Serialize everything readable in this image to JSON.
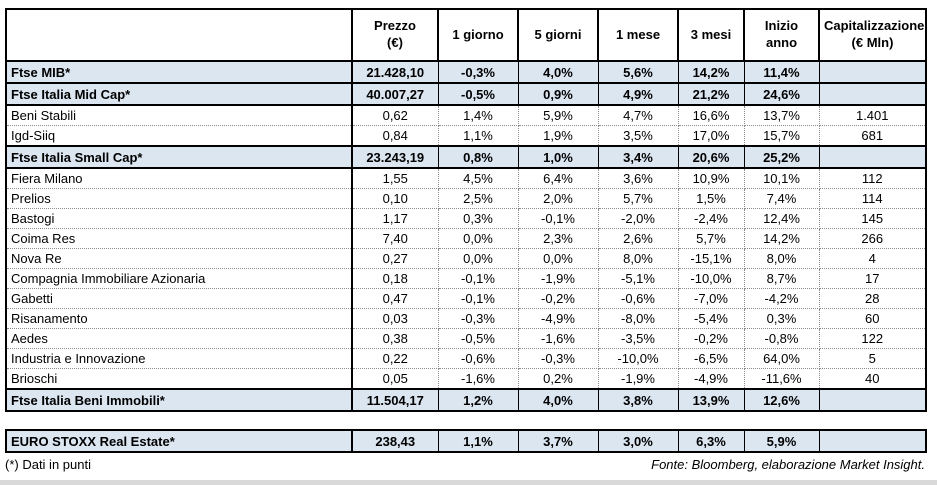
{
  "chart_data": {
    "type": "table",
    "columns": [
      "",
      "Prezzo\n(€)",
      "1 giorno",
      "5 giorni",
      "1 mese",
      "3 mesi",
      "Inizio anno",
      "Capitalizzazione\n(€ Mln)"
    ],
    "rows": [
      {
        "name": "Ftse MIB*",
        "style": "index",
        "values": [
          "21.428,10",
          "-0,3%",
          "4,0%",
          "5,6%",
          "14,2%",
          "11,4%",
          ""
        ]
      },
      {
        "name": "Ftse Italia Mid Cap*",
        "style": "index",
        "values": [
          "40.007,27",
          "-0,5%",
          "0,9%",
          "4,9%",
          "21,2%",
          "24,6%",
          ""
        ]
      },
      {
        "name": "Beni Stabili",
        "style": "stock",
        "values": [
          "0,62",
          "1,4%",
          "5,9%",
          "4,7%",
          "16,6%",
          "13,7%",
          "1.401"
        ]
      },
      {
        "name": "Igd-Siiq",
        "style": "stock",
        "values": [
          "0,84",
          "1,1%",
          "1,9%",
          "3,5%",
          "17,0%",
          "15,7%",
          "681"
        ]
      },
      {
        "name": "Ftse Italia Small Cap*",
        "style": "index",
        "values": [
          "23.243,19",
          "0,8%",
          "1,0%",
          "3,4%",
          "20,6%",
          "25,2%",
          ""
        ]
      },
      {
        "name": "Fiera Milano",
        "style": "stock",
        "values": [
          "1,55",
          "4,5%",
          "6,4%",
          "3,6%",
          "10,9%",
          "10,1%",
          "112"
        ]
      },
      {
        "name": "Prelios",
        "style": "stock",
        "values": [
          "0,10",
          "2,5%",
          "2,0%",
          "5,7%",
          "1,5%",
          "7,4%",
          "114"
        ]
      },
      {
        "name": "Bastogi",
        "style": "stock",
        "values": [
          "1,17",
          "0,3%",
          "-0,1%",
          "-2,0%",
          "-2,4%",
          "12,4%",
          "145"
        ]
      },
      {
        "name": "Coima Res",
        "style": "stock",
        "values": [
          "7,40",
          "0,0%",
          "2,3%",
          "2,6%",
          "5,7%",
          "14,2%",
          "266"
        ]
      },
      {
        "name": "Nova Re",
        "style": "stock",
        "values": [
          "0,27",
          "0,0%",
          "0,0%",
          "8,0%",
          "-15,1%",
          "8,0%",
          "4"
        ]
      },
      {
        "name": "Compagnia Immobiliare Azionaria",
        "style": "stock",
        "values": [
          "0,18",
          "-0,1%",
          "-1,9%",
          "-5,1%",
          "-10,0%",
          "8,7%",
          "17"
        ]
      },
      {
        "name": "Gabetti",
        "style": "stock",
        "values": [
          "0,47",
          "-0,1%",
          "-0,2%",
          "-0,6%",
          "-7,0%",
          "-4,2%",
          "28"
        ]
      },
      {
        "name": "Risanamento",
        "style": "stock",
        "values": [
          "0,03",
          "-0,3%",
          "-4,9%",
          "-8,0%",
          "-5,4%",
          "0,3%",
          "60"
        ]
      },
      {
        "name": "Aedes",
        "style": "stock",
        "values": [
          "0,38",
          "-0,5%",
          "-1,6%",
          "-3,5%",
          "-0,2%",
          "-0,8%",
          "122"
        ]
      },
      {
        "name": "Industria e Innovazione",
        "style": "stock",
        "values": [
          "0,22",
          "-0,6%",
          "-0,3%",
          "-10,0%",
          "-6,5%",
          "64,0%",
          "5"
        ]
      },
      {
        "name": "Brioschi",
        "style": "stock",
        "values": [
          "0,05",
          "-1,6%",
          "0,2%",
          "-1,9%",
          "-4,9%",
          "-11,6%",
          "40"
        ]
      },
      {
        "name": "Ftse Italia Beni Immobili*",
        "style": "index",
        "values": [
          "11.504,17",
          "1,2%",
          "4,0%",
          "3,8%",
          "13,9%",
          "12,6%",
          ""
        ]
      }
    ],
    "separate_rows": [
      {
        "name": "EURO STOXX Real Estate*",
        "style": "index",
        "values": [
          "238,43",
          "1,1%",
          "3,7%",
          "3,0%",
          "6,3%",
          "5,9%",
          ""
        ]
      }
    ]
  },
  "footer": {
    "note": "(*) Dati in punti",
    "source": "Fonte: Bloomberg, elaborazione Market Insight."
  },
  "colors": {
    "index_row_bg": "#dce6f1",
    "table_border": "#000000",
    "grid_dotted": "#8c8c8c"
  }
}
